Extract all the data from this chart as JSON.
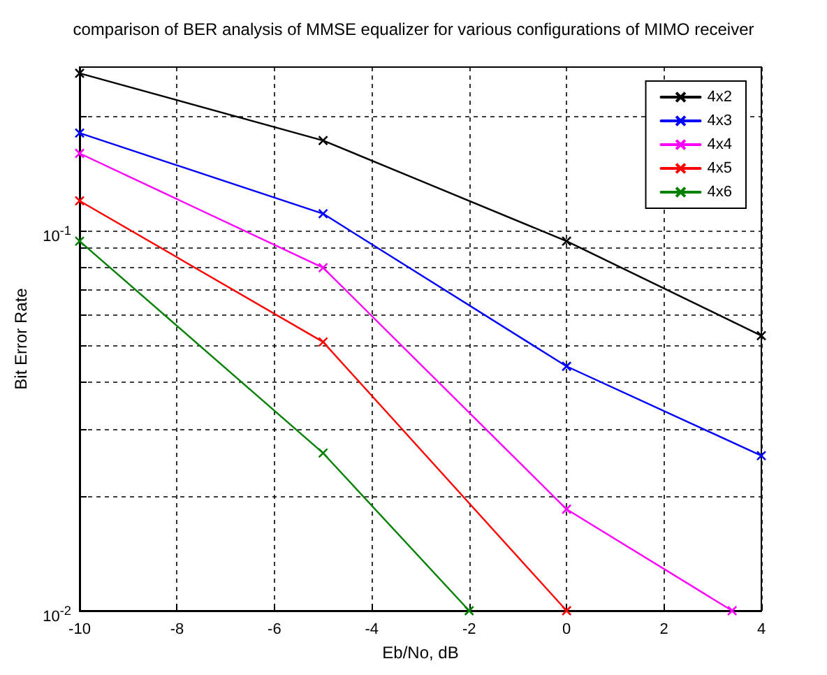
{
  "chart_data": {
    "type": "line",
    "title": "comparison of BER analysis of MMSE equalizer for various configurations of MIMO receiver",
    "xlabel": "Eb/No, dB",
    "ylabel": "Bit Error Rate",
    "series": [
      {
        "name": "4x2",
        "color": "#000000",
        "x": [
          -10,
          -5,
          0,
          4
        ],
        "values": [
          0.26,
          0.173,
          0.094,
          0.053
        ]
      },
      {
        "name": "4x3",
        "color": "#0000ff",
        "x": [
          -10,
          -5,
          0,
          4
        ],
        "values": [
          0.181,
          0.111,
          0.044,
          0.0256
        ]
      },
      {
        "name": "4x4",
        "color": "#ff00ff",
        "x": [
          -10,
          -5,
          0,
          3.4
        ],
        "values": [
          0.16,
          0.08,
          0.0185,
          0.01
        ]
      },
      {
        "name": "4x5",
        "color": "#ff0000",
        "x": [
          -10,
          -5,
          0
        ],
        "values": [
          0.12,
          0.051,
          0.01
        ]
      },
      {
        "name": "4x6",
        "color": "#008000",
        "x": [
          -10,
          -5,
          -2
        ],
        "values": [
          0.094,
          0.026,
          0.01
        ]
      }
    ],
    "xlim": [
      -10,
      4
    ],
    "xticks": [
      -10,
      -8,
      -6,
      -4,
      -2,
      0,
      2,
      4
    ],
    "ylim": [
      0.01,
      0.27
    ],
    "log": "y",
    "yticks": [
      {
        "value": 0.01,
        "label": "10$^{-2}$"
      },
      {
        "value": 0.02,
        "label": null
      },
      {
        "value": 0.03,
        "label": null
      },
      {
        "value": 0.04,
        "label": null
      },
      {
        "value": 0.05,
        "label": null
      },
      {
        "value": 0.06,
        "label": null
      },
      {
        "value": 0.07,
        "label": null
      },
      {
        "value": 0.08,
        "label": null
      },
      {
        "value": 0.09,
        "label": null
      },
      {
        "value": 0.1,
        "label": "10$^{-1}$"
      },
      {
        "value": 0.2,
        "label": null
      }
    ],
    "grid": true,
    "legend": "top right",
    "marker": "cross",
    "line_style": "solid"
  }
}
